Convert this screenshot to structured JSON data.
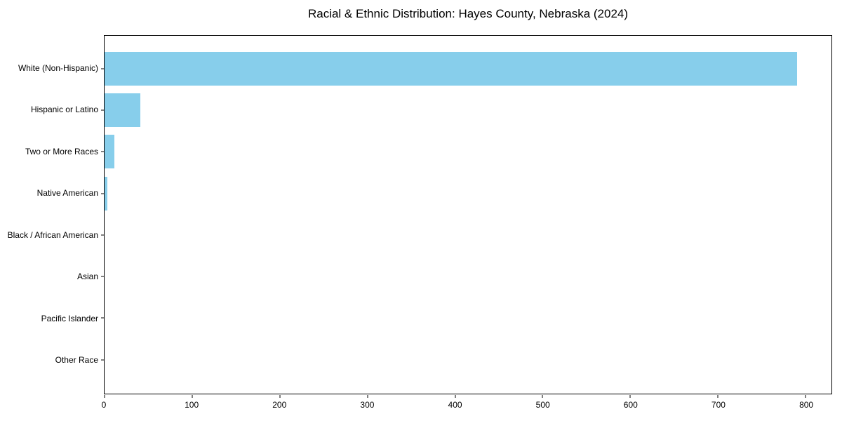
{
  "chart_data": {
    "type": "bar",
    "orientation": "horizontal",
    "title": "Racial & Ethnic Distribution: Hayes County, Nebraska (2024)",
    "categories": [
      "White (Non-Hispanic)",
      "Hispanic or Latino",
      "Two or More Races",
      "Native American",
      "Black / African American",
      "Asian",
      "Pacific Islander",
      "Other Race"
    ],
    "values": [
      790,
      41,
      11,
      3,
      0,
      0,
      0,
      0
    ],
    "xlabel": "",
    "ylabel": "",
    "xlim": [
      0,
      829.5
    ],
    "x_ticks": [
      0,
      100,
      200,
      300,
      400,
      500,
      600,
      700,
      800
    ],
    "bar_color": "#87CEEB",
    "grid": false,
    "legend_position": "none"
  }
}
